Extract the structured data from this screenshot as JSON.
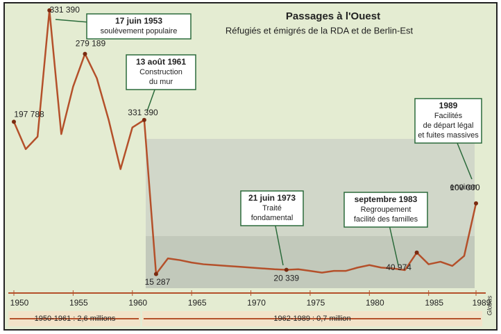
{
  "chart_data": {
    "type": "line",
    "title": "Passages à l'Ouest",
    "subtitle": "Réfugiés et émigrés de la RDA et de Berlin-Est",
    "x": [
      1950,
      1951,
      1952,
      1953,
      1954,
      1955,
      1956,
      1957,
      1958,
      1959,
      1960,
      1961,
      1962,
      1963,
      1964,
      1965,
      1966,
      1967,
      1968,
      1969,
      1970,
      1971,
      1972,
      1973,
      1974,
      1975,
      1976,
      1977,
      1978,
      1979,
      1980,
      1981,
      1982,
      1983,
      1984,
      1985,
      1986,
      1987,
      1988,
      1989
    ],
    "series": [
      {
        "color": "#b4502a",
        "values": [
          197788,
          165000,
          180000,
          331390,
          183000,
          240000,
          279189,
          250000,
          200000,
          141000,
          191000,
          200000,
          15287,
          34000,
          32000,
          29000,
          27000,
          26000,
          25000,
          24000,
          23000,
          22000,
          21000,
          20339,
          21000,
          19000,
          17000,
          19000,
          19000,
          23000,
          26000,
          23000,
          22000,
          20000,
          40974,
          27000,
          30000,
          25000,
          37000,
          100000
        ],
        "value_labels": [
          "197 788",
          null,
          null,
          "331 390",
          null,
          null,
          "279 189",
          null,
          null,
          null,
          null,
          null,
          "15 287",
          null,
          null,
          null,
          null,
          null,
          null,
          null,
          null,
          null,
          null,
          "20 339",
          null,
          null,
          null,
          null,
          null,
          null,
          null,
          null,
          null,
          null,
          "40 974",
          null,
          null,
          null,
          null,
          "100 000"
        ]
      }
    ],
    "xlim": [
      1950,
      1989
    ],
    "xticks": [
      1950,
      1955,
      1960,
      1965,
      1970,
      1975,
      1980,
      1985,
      1989
    ],
    "ylim": [
      0,
      340000
    ],
    "annotations": [
      {
        "lines": [
          "17 juin 1953",
          "soulèvement populaire"
        ]
      },
      {
        "lines": [
          "13 août 1961",
          "Construction",
          "du mur"
        ]
      },
      {
        "lines": [
          "21 juin 1973",
          "Traité",
          "fondamental"
        ]
      },
      {
        "lines": [
          "septembre 1983",
          "Regroupement",
          "facilité des familles"
        ]
      },
      {
        "lines": [
          "1989",
          "Facilités",
          "de départ légal",
          "et fuites massives"
        ]
      }
    ],
    "extra_labels": [
      "331 390",
      "environ"
    ],
    "periods": [
      "1950-1961 : 2,6 millions",
      "1962-1989 : 0,7 million"
    ],
    "source": "Globus"
  }
}
